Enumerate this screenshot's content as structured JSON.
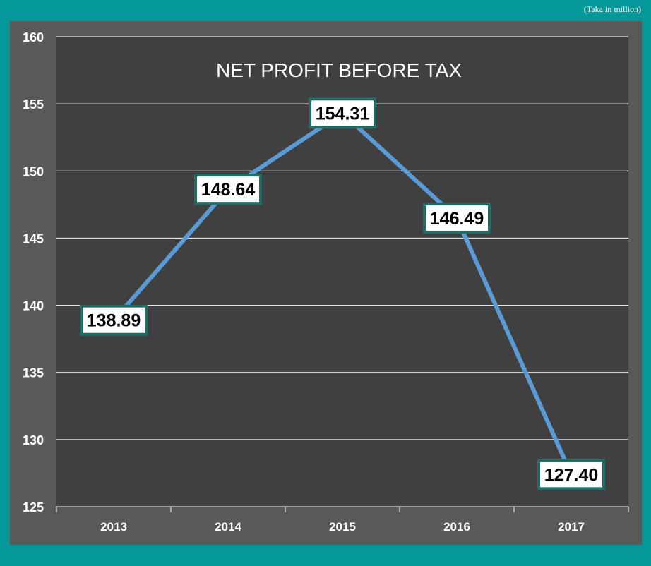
{
  "unit_note": "(Taka in million)",
  "chart_data": {
    "type": "line",
    "title": "NET PROFIT BEFORE TAX",
    "xlabel": "",
    "ylabel": "",
    "categories": [
      "2013",
      "2014",
      "2015",
      "2016",
      "2017"
    ],
    "series": [
      {
        "values": [
          138.89,
          148.64,
          154.31,
          146.49,
          127.4
        ]
      }
    ],
    "data_labels": [
      "138.89",
      "148.64",
      "154.31",
      "146.49",
      "127.40"
    ],
    "ylim": [
      125,
      160
    ],
    "yticks": [
      125,
      130,
      135,
      140,
      145,
      150,
      155,
      160
    ],
    "grid": true,
    "legend": "none",
    "colors": {
      "line": "#5b9bd5",
      "label_border": "#1f6d64",
      "label_fill": "#ffffff",
      "plot_bg": "#404040",
      "outer_bg": "#595959",
      "frame_bg": "#05989a"
    }
  }
}
